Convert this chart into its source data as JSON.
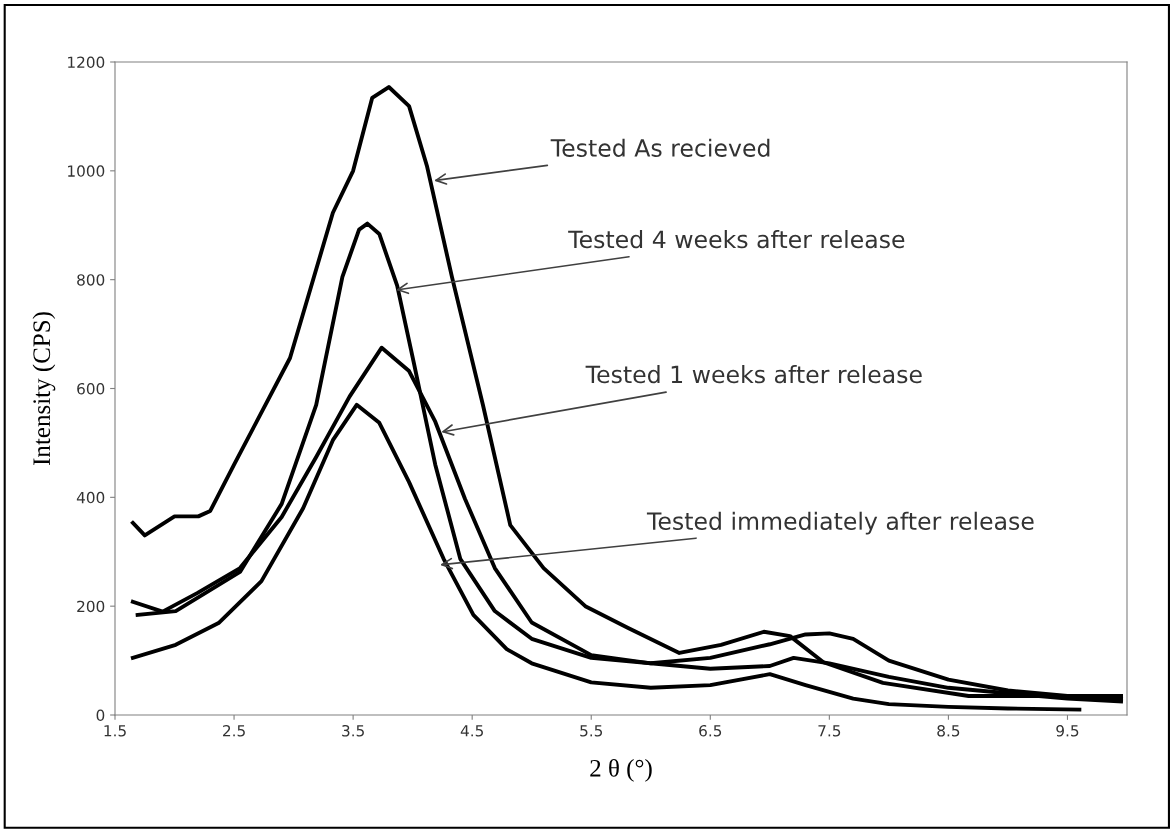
{
  "chart_data": {
    "type": "line",
    "xlabel": "2 θ (°)",
    "ylabel": "Intensity (CPS)",
    "xlim": [
      1.5,
      10
    ],
    "xticks": [
      1.5,
      2.5,
      3.5,
      4.5,
      5.5,
      6.5,
      7.5,
      8.5,
      9.5
    ],
    "ylim": [
      0,
      1200
    ],
    "yticks": [
      0,
      200,
      400,
      600,
      800,
      1000,
      1200
    ],
    "grid": false,
    "marker": "none",
    "line_style": "solid",
    "series": [
      {
        "color": "#000000",
        "x": [
          1.65,
          1.75,
          2.0,
          2.2,
          2.3,
          2.5,
          2.97,
          3.33,
          3.5,
          3.66,
          3.8,
          3.97,
          4.12,
          4.33,
          4.59,
          4.82,
          5.1,
          5.45,
          5.81,
          6.24,
          6.59,
          6.95,
          7.17,
          7.45,
          7.95,
          8.67,
          9.38,
          9.95
        ],
        "values": [
          353,
          330,
          365,
          365,
          375,
          460,
          656,
          923,
          1000,
          1134,
          1154,
          1119,
          1009,
          805,
          570,
          349,
          270,
          200,
          160,
          114,
          129,
          153,
          145,
          97,
          59,
          35,
          35,
          35
        ]
      },
      {
        "color": "#000000",
        "x": [
          1.69,
          2.01,
          2.55,
          2.9,
          3.19,
          3.41,
          3.55,
          3.62,
          3.72,
          3.87,
          4.01,
          4.19,
          4.4,
          4.69,
          5.0,
          5.5,
          6.0,
          6.5,
          7.0,
          7.3,
          7.5,
          7.7,
          8.0,
          8.5,
          9.0,
          9.5,
          9.95
        ],
        "values": [
          184,
          191,
          263,
          388,
          570,
          805,
          892,
          903,
          884,
          789,
          647,
          460,
          287,
          191,
          140,
          105,
          95,
          105,
          130,
          148,
          150,
          140,
          100,
          65,
          45,
          35,
          30
        ]
      },
      {
        "color": "#000000",
        "x": [
          1.65,
          1.9,
          2.19,
          2.55,
          2.9,
          3.19,
          3.47,
          3.74,
          3.97,
          4.19,
          4.44,
          4.69,
          5.0,
          5.5,
          6.0,
          6.5,
          7.0,
          7.2,
          7.5,
          8.0,
          8.5,
          9.0,
          9.5,
          9.95
        ],
        "values": [
          208,
          190,
          224,
          270,
          364,
          474,
          585,
          675,
          632,
          539,
          397,
          270,
          170,
          110,
          95,
          85,
          90,
          105,
          95,
          70,
          50,
          40,
          30,
          25
        ]
      },
      {
        "color": "#000000",
        "x": [
          1.65,
          2.01,
          2.37,
          2.73,
          3.08,
          3.33,
          3.53,
          3.72,
          3.97,
          4.26,
          4.51,
          4.79,
          5.0,
          5.5,
          6.0,
          6.5,
          7.0,
          7.3,
          7.7,
          8.0,
          8.5,
          9.0,
          9.6
        ],
        "values": [
          105,
          129,
          169,
          246,
          380,
          505,
          570,
          537,
          428,
          287,
          184,
          121,
          95,
          60,
          50,
          55,
          75,
          55,
          30,
          20,
          15,
          12,
          10
        ]
      }
    ],
    "annotations": [
      {
        "text": "Tested As recieved",
        "x": 4.18,
        "y": 982
      },
      {
        "text": "Tested 4 weeks after release",
        "x": 3.86,
        "y": 781
      },
      {
        "text": "Tested 1 weeks after release",
        "x": 4.24,
        "y": 520
      },
      {
        "text": "Tested immediately after release",
        "x": 4.23,
        "y": 276
      }
    ]
  }
}
